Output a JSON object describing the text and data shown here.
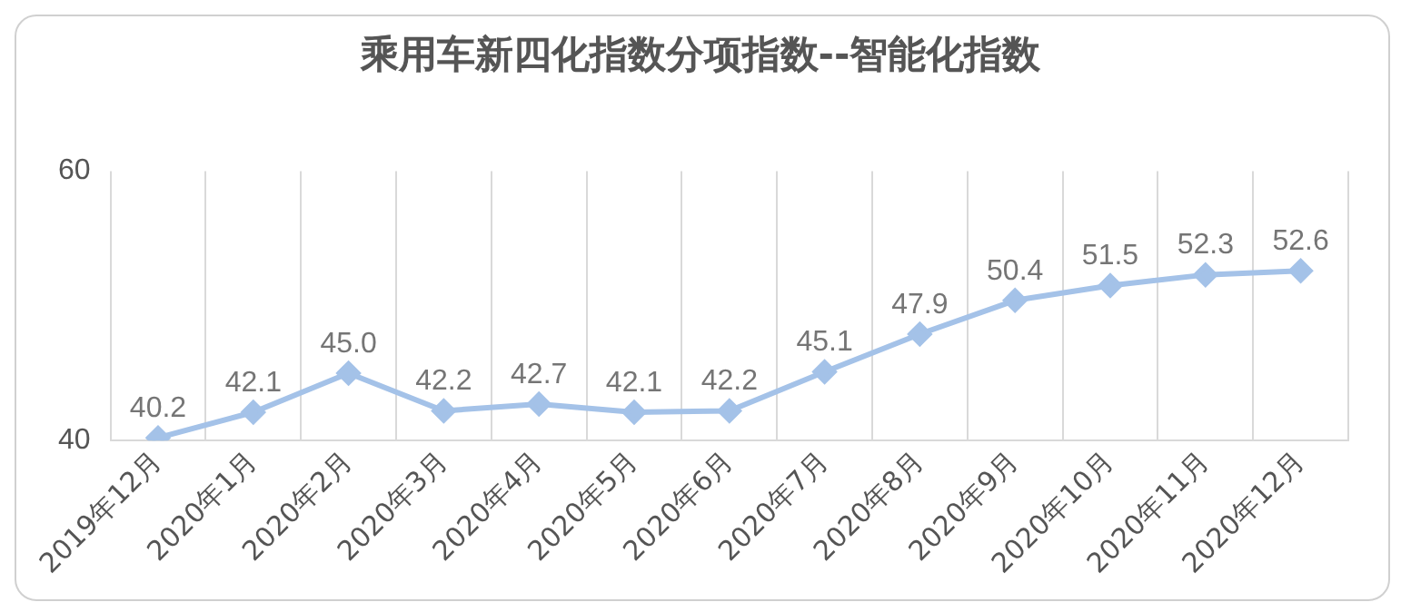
{
  "chart_data": {
    "type": "line",
    "title": "乘用车新四化指数分项指数--智能化指数",
    "categories": [
      "2019年12月",
      "2020年1月",
      "2020年2月",
      "2020年3月",
      "2020年4月",
      "2020年5月",
      "2020年6月",
      "2020年7月",
      "2020年8月",
      "2020年9月",
      "2020年10月",
      "2020年11月",
      "2020年12月"
    ],
    "series": [
      {
        "color": "#a4c2e8",
        "values": [
          40.2,
          42.1,
          45.0,
          42.2,
          42.7,
          42.1,
          42.2,
          45.1,
          47.9,
          50.4,
          51.5,
          52.3,
          52.6
        ]
      }
    ],
    "value_labels": [
      "40.2",
      "42.1",
      "45.0",
      "42.2",
      "42.7",
      "42.1",
      "42.2",
      "45.1",
      "47.9",
      "50.4",
      "51.5",
      "52.3",
      "52.6"
    ],
    "ylim": [
      40,
      60
    ],
    "yticks": [
      40,
      60
    ],
    "grid": "x",
    "legend": false,
    "marker": "diamond",
    "line_style": "solid"
  }
}
